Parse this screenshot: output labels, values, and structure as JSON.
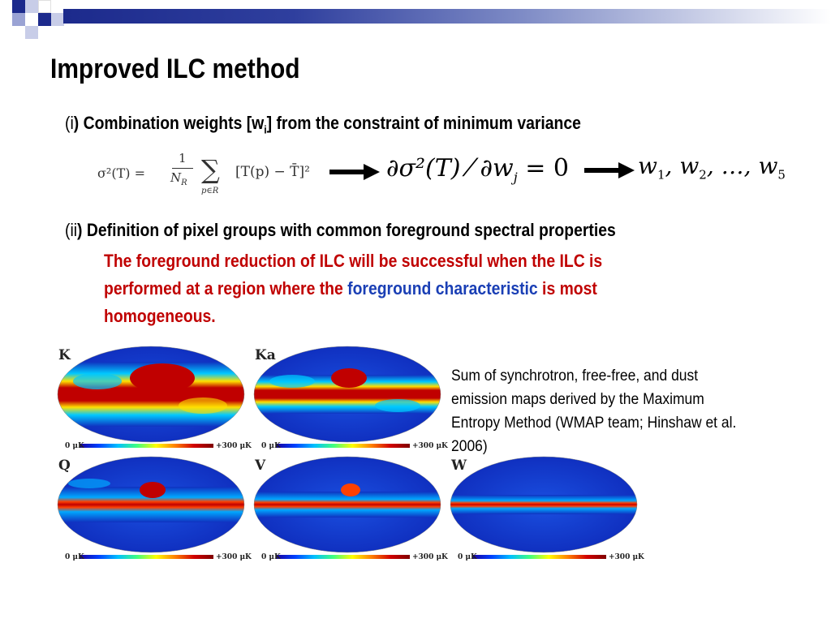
{
  "colors": {
    "accent_bar": "#1c2a8c",
    "red_text": "#c00000",
    "blue_text": "#1a3fb5"
  },
  "slide": {
    "title": "Improved ILC method",
    "item1": {
      "prefix": "(i",
      "prefix_close": ")",
      "text_before_sub": "Combination weights [w",
      "sub": "i",
      "text_after_sub": "] from the constraint of minimum variance"
    },
    "formula_left": {
      "lhs": "σ²(T) =",
      "frac_num": "1",
      "frac_den": "N",
      "frac_den_sub": "R",
      "sum_symbol": "∑",
      "sum_sub": "p∈R",
      "bracket_expr": "[T(p) − T̄]²"
    },
    "formula_mid": {
      "text": "∂σ²(T) ⁄ ∂w",
      "sub": "j",
      "rhs": "= 0"
    },
    "formula_right": {
      "w1": "w",
      "w1_sub": "1",
      "w2": ", w",
      "w2_sub": "2",
      "dots": ", …, w",
      "w5_sub": "5"
    },
    "item2": {
      "prefix": "(ii",
      "prefix_close": ")",
      "text": "Definition of pixel groups with common foreground spectral properties"
    },
    "red_paragraph": {
      "part1": "The foreground reduction of ILC will be successful when the ILC is performed at a region where the ",
      "blue_part": "foreground characteristic",
      "part2": " is most homogeneous."
    },
    "caption": "Sum of synchrotron, free-free, and dust emission maps derived by the Maximum Entropy Method (WMAP team; Hinshaw et al. 2006)",
    "maps": [
      {
        "label": "K",
        "scale_min": "0 μK",
        "scale_max": "+300 μK"
      },
      {
        "label": "Ka",
        "scale_min": "0 μK",
        "scale_max": "+300 μK"
      },
      {
        "label": "Q",
        "scale_min": "0 μK",
        "scale_max": "+300 μK"
      },
      {
        "label": "V",
        "scale_min": "0 μK",
        "scale_max": "+300 μK"
      },
      {
        "label": "W",
        "scale_min": "0 μK",
        "scale_max": "+300 μK"
      }
    ]
  }
}
